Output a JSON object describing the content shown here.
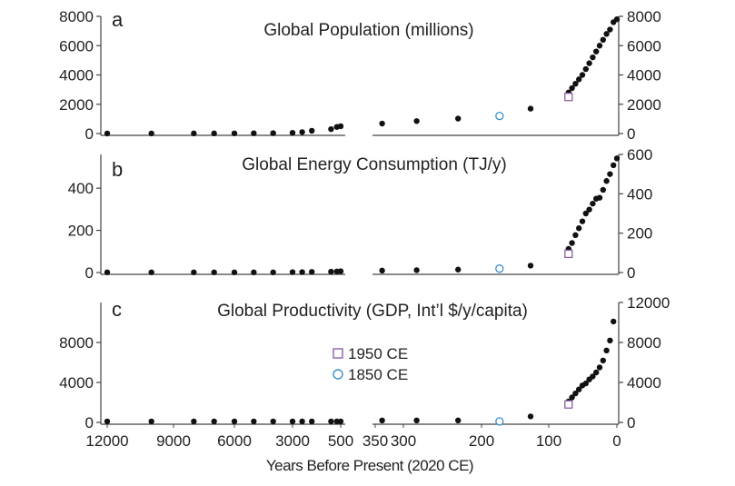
{
  "chart_data": [
    {
      "type": "scatter",
      "letter": "a",
      "title": "Global Population (millions)",
      "xlabel": "Years Before Present (2020 CE)",
      "x_left_ticks": [
        12000,
        9000,
        6000,
        3000,
        500
      ],
      "x_right_ticks": [
        350,
        300,
        200,
        100,
        0
      ],
      "y_left_ticks": [
        0,
        2000,
        4000,
        6000,
        8000
      ],
      "y_right_ticks": [
        0,
        2000,
        4000,
        6000,
        8000
      ],
      "y_left_lim": [
        0,
        8000
      ],
      "y_right_lim": [
        0,
        8000
      ],
      "series": [
        {
          "values_left": [
            [
              12000,
              4
            ],
            [
              10000,
              5
            ],
            [
              8000,
              7
            ],
            [
              7000,
              10
            ],
            [
              6000,
              14
            ],
            [
              5000,
              20
            ],
            [
              4000,
              27
            ],
            [
              3000,
              50
            ],
            [
              2500,
              100
            ],
            [
              2000,
              190
            ],
            [
              1000,
              300
            ],
            [
              700,
              450
            ],
            [
              500,
              500
            ]
          ],
          "values_right": [
            [
              340,
              680
            ],
            [
              290,
              850
            ],
            [
              230,
              1020
            ],
            [
              125,
              1700
            ],
            [
              70,
              2800
            ],
            [
              65,
              3100
            ],
            [
              60,
              3400
            ],
            [
              55,
              3700
            ],
            [
              50,
              4000
            ],
            [
              45,
              4400
            ],
            [
              40,
              4800
            ],
            [
              35,
              5200
            ],
            [
              30,
              5600
            ],
            [
              25,
              6000
            ],
            [
              20,
              6400
            ],
            [
              15,
              6800
            ],
            [
              10,
              7100
            ],
            [
              5,
              7600
            ],
            [
              0,
              7800
            ]
          ]
        },
        {
          "name": "1950 CE",
          "values_right": [
            [
              70,
              2500
            ]
          ]
        },
        {
          "name": "1850 CE",
          "values_right": [
            [
              170,
              1200
            ]
          ]
        }
      ]
    },
    {
      "type": "scatter",
      "letter": "b",
      "title": "Global Energy Consumption (TJ/y)",
      "x_left_ticks": [
        12000,
        9000,
        6000,
        3000,
        500
      ],
      "x_right_ticks": [
        350,
        300,
        200,
        100,
        0
      ],
      "y_left_ticks": [
        0,
        200,
        400
      ],
      "y_right_ticks": [
        0,
        200,
        400,
        600
      ],
      "y_left_lim": [
        0,
        560
      ],
      "y_right_lim": [
        0,
        600
      ],
      "series": [
        {
          "values_left": [
            [
              12000,
              1
            ],
            [
              10000,
              1
            ],
            [
              8000,
              1
            ],
            [
              7000,
              1
            ],
            [
              6000,
              1
            ],
            [
              5000,
              1
            ],
            [
              4000,
              1
            ],
            [
              3000,
              2
            ],
            [
              2500,
              2
            ],
            [
              2000,
              3
            ],
            [
              1000,
              4
            ],
            [
              700,
              5
            ],
            [
              500,
              6
            ]
          ],
          "values_right": [
            [
              340,
              10
            ],
            [
              290,
              12
            ],
            [
              230,
              15
            ],
            [
              125,
              35
            ],
            [
              70,
              120
            ],
            [
              65,
              150
            ],
            [
              60,
              190
            ],
            [
              55,
              225
            ],
            [
              50,
              260
            ],
            [
              45,
              300
            ],
            [
              40,
              320
            ],
            [
              35,
              350
            ],
            [
              30,
              375
            ],
            [
              25,
              380
            ],
            [
              20,
              420
            ],
            [
              15,
              465
            ],
            [
              10,
              500
            ],
            [
              5,
              545
            ],
            [
              0,
              580
            ]
          ]
        },
        {
          "name": "1950 CE",
          "values_right": [
            [
              70,
              95
            ]
          ]
        },
        {
          "name": "1850 CE",
          "values_right": [
            [
              170,
              20
            ]
          ]
        }
      ]
    },
    {
      "type": "scatter",
      "letter": "c",
      "title": "Global Productivity (GDP, Int’l $/y/capita)",
      "x_left_ticks": [
        12000,
        9000,
        6000,
        3000,
        500
      ],
      "x_right_ticks": [
        350,
        300,
        200,
        100,
        0
      ],
      "y_left_ticks": [
        0,
        4000,
        8000
      ],
      "y_right_ticks": [
        0,
        4000,
        8000,
        12000
      ],
      "y_left_lim": [
        0,
        12000
      ],
      "y_right_lim": [
        0,
        12000
      ],
      "series": [
        {
          "values_left": [
            [
              12000,
              100
            ],
            [
              10000,
              100
            ],
            [
              8000,
              100
            ],
            [
              7000,
              100
            ],
            [
              6000,
              100
            ],
            [
              5000,
              100
            ],
            [
              4000,
              100
            ],
            [
              3000,
              100
            ],
            [
              2500,
              100
            ],
            [
              2000,
              100
            ],
            [
              1000,
              100
            ],
            [
              700,
              100
            ],
            [
              500,
              100
            ]
          ],
          "values_right": [
            [
              340,
              200
            ],
            [
              290,
              200
            ],
            [
              230,
              200
            ],
            [
              125,
              600
            ],
            [
              70,
              2100
            ],
            [
              65,
              2500
            ],
            [
              60,
              2900
            ],
            [
              55,
              3300
            ],
            [
              50,
              3700
            ],
            [
              45,
              3900
            ],
            [
              40,
              4300
            ],
            [
              35,
              4600
            ],
            [
              30,
              5000
            ],
            [
              25,
              5500
            ],
            [
              20,
              6200
            ],
            [
              15,
              7200
            ],
            [
              10,
              8200
            ],
            [
              5,
              10100
            ]
          ]
        },
        {
          "name": "1950 CE",
          "values_right": [
            [
              70,
              1800
            ]
          ]
        },
        {
          "name": "1850 CE",
          "values_right": [
            [
              170,
              100
            ]
          ]
        }
      ]
    }
  ],
  "legend": {
    "entries": [
      {
        "label": "1950 CE",
        "marker": "square",
        "color": "#8e5fa8"
      },
      {
        "label": "1850 CE",
        "marker": "circle",
        "color": "#3a8fc9"
      }
    ],
    "placement": "center"
  },
  "colors": {
    "main": "#111111",
    "marker_1950": "#8e5fa8",
    "marker_1850": "#3a8fc9",
    "axis": "#444444"
  }
}
